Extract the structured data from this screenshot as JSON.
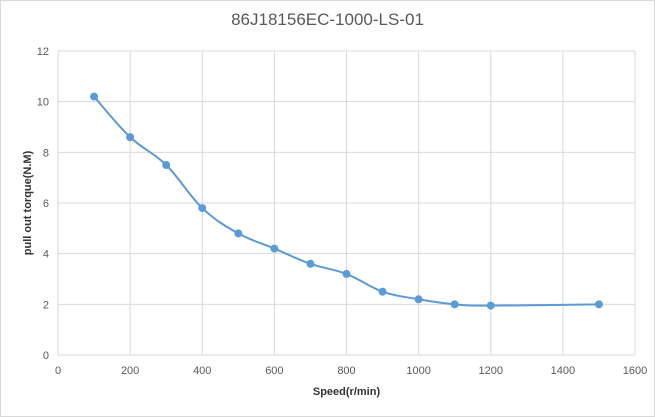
{
  "chart_data": {
    "type": "line",
    "title": "86J18156EC-1000-LS-01",
    "xlabel": "Speed(r/min)",
    "ylabel": "pull out torque(N.M)",
    "xlim": [
      0,
      1600
    ],
    "ylim": [
      0,
      12
    ],
    "xticks": [
      0,
      200,
      400,
      600,
      800,
      1000,
      1200,
      1400,
      1600
    ],
    "yticks": [
      0,
      2,
      4,
      6,
      8,
      10,
      12
    ],
    "grid": true,
    "series": [
      {
        "x": [
          100,
          200,
          300,
          400,
          500,
          600,
          700,
          800,
          900,
          1000,
          1100,
          1200,
          1500
        ],
        "y": [
          10.2,
          8.6,
          7.5,
          5.8,
          4.8,
          4.2,
          3.6,
          3.2,
          2.5,
          2.2,
          2.0,
          1.95,
          2.0
        ]
      }
    ],
    "colors": {
      "line": "#5b9bd5",
      "grid": "#d9d9d9",
      "text": "#595959"
    }
  }
}
